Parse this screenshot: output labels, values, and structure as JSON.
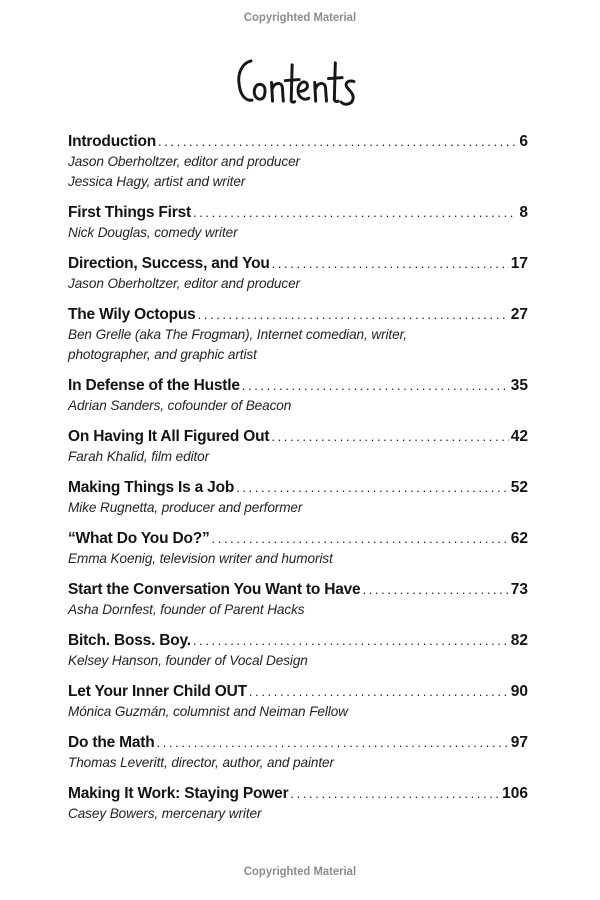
{
  "page": {
    "copyright_top": "Copyrighted Material",
    "copyright_bottom": "Copyrighted Material",
    "title": "Contents"
  },
  "colors": {
    "text": "#141414",
    "muted_copyright": "#8c8c8c",
    "background": "#ffffff"
  },
  "toc": {
    "entries": [
      {
        "title": "Introduction",
        "page": "6",
        "authors": [
          "Jason Oberholtzer, editor and producer",
          "Jessica Hagy, artist and writer"
        ]
      },
      {
        "title": "First Things First",
        "page": "8",
        "authors": [
          "Nick Douglas, comedy writer"
        ]
      },
      {
        "title": "Direction, Success, and You",
        "page": "17",
        "authors": [
          "Jason Oberholtzer, editor and producer"
        ]
      },
      {
        "title": "The Wily Octopus",
        "page": "27",
        "authors": [
          "Ben Grelle (aka The Frogman), Internet comedian, writer,",
          "photographer, and graphic artist"
        ]
      },
      {
        "title": "In Defense of the Hustle",
        "page": "35",
        "authors": [
          "Adrian Sanders, cofounder of Beacon"
        ]
      },
      {
        "title": "On Having It All Figured Out",
        "page": "42",
        "authors": [
          "Farah Khalid, film editor"
        ]
      },
      {
        "title": "Making Things Is a Job",
        "page": "52",
        "authors": [
          "Mike Rugnetta, producer and performer"
        ]
      },
      {
        "title": "“What Do You Do?”",
        "page": "62",
        "authors": [
          "Emma Koenig, television writer and humorist"
        ]
      },
      {
        "title": "Start the Conversation You Want to Have",
        "page": "73",
        "authors": [
          "Asha Dornfest, founder of Parent Hacks"
        ]
      },
      {
        "title": "Bitch. Boss. Boy.",
        "page": "82",
        "authors": [
          "Kelsey Hanson, founder of Vocal Design"
        ]
      },
      {
        "title": "Let Your Inner Child OUT",
        "page": "90",
        "authors": [
          "Mónica Guzmán, columnist and Neiman Fellow"
        ]
      },
      {
        "title": "Do the Math",
        "page": "97",
        "authors": [
          "Thomas Leveritt, director, author, and painter"
        ]
      },
      {
        "title": "Making It Work: Staying Power",
        "page": "106",
        "authors": [
          "Casey Bowers, mercenary writer"
        ]
      }
    ]
  }
}
